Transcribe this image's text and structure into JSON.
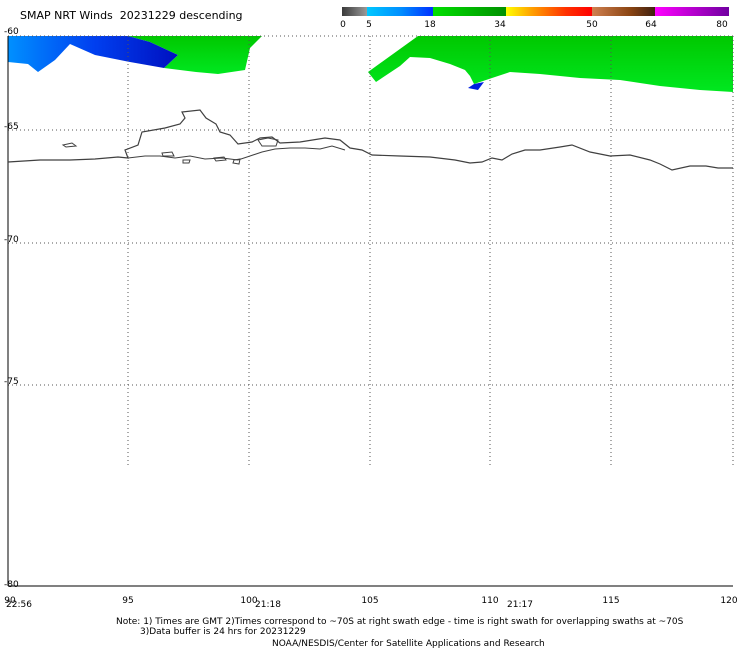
{
  "title": "SMAP NRT Winds  20231229 descending",
  "colorbar": {
    "ticks": [
      "0",
      "5",
      "18",
      "34",
      "50",
      "64",
      "80"
    ],
    "segments": [
      {
        "from": 0,
        "to": 5,
        "color": "#606060"
      },
      {
        "from": 5,
        "to": 18,
        "color": "#0080ff"
      },
      {
        "from": 18,
        "to": 34,
        "color": "#00c000"
      },
      {
        "from": 34,
        "to": 50,
        "color": "#ff4000"
      },
      {
        "from": 50,
        "to": 64,
        "color": "#8b4513"
      },
      {
        "from": 64,
        "to": 80,
        "color": "#a000c0"
      }
    ]
  },
  "map": {
    "lat_labels": [
      "-60",
      "-65",
      "-70",
      "-75",
      "-80"
    ],
    "lon_labels": [
      "90",
      "95",
      "100",
      "105",
      "110",
      "115",
      "120"
    ],
    "time_labels": [
      "22:56",
      "21:18",
      "21:17"
    ],
    "wind_colors": {
      "green": "#00d000",
      "blue": "#0030e0"
    },
    "coastline_color": "#404040"
  },
  "notes": {
    "line1": "Note: 1) Times are GMT 2)Times correspond to ~70S at right swath edge - time is right swath for overlapping swaths at ~70S",
    "line2": "3)Data buffer is 24 hrs for 20231229",
    "credit": "NOAA/NESDIS/Center for Satellite Applications and Research"
  }
}
